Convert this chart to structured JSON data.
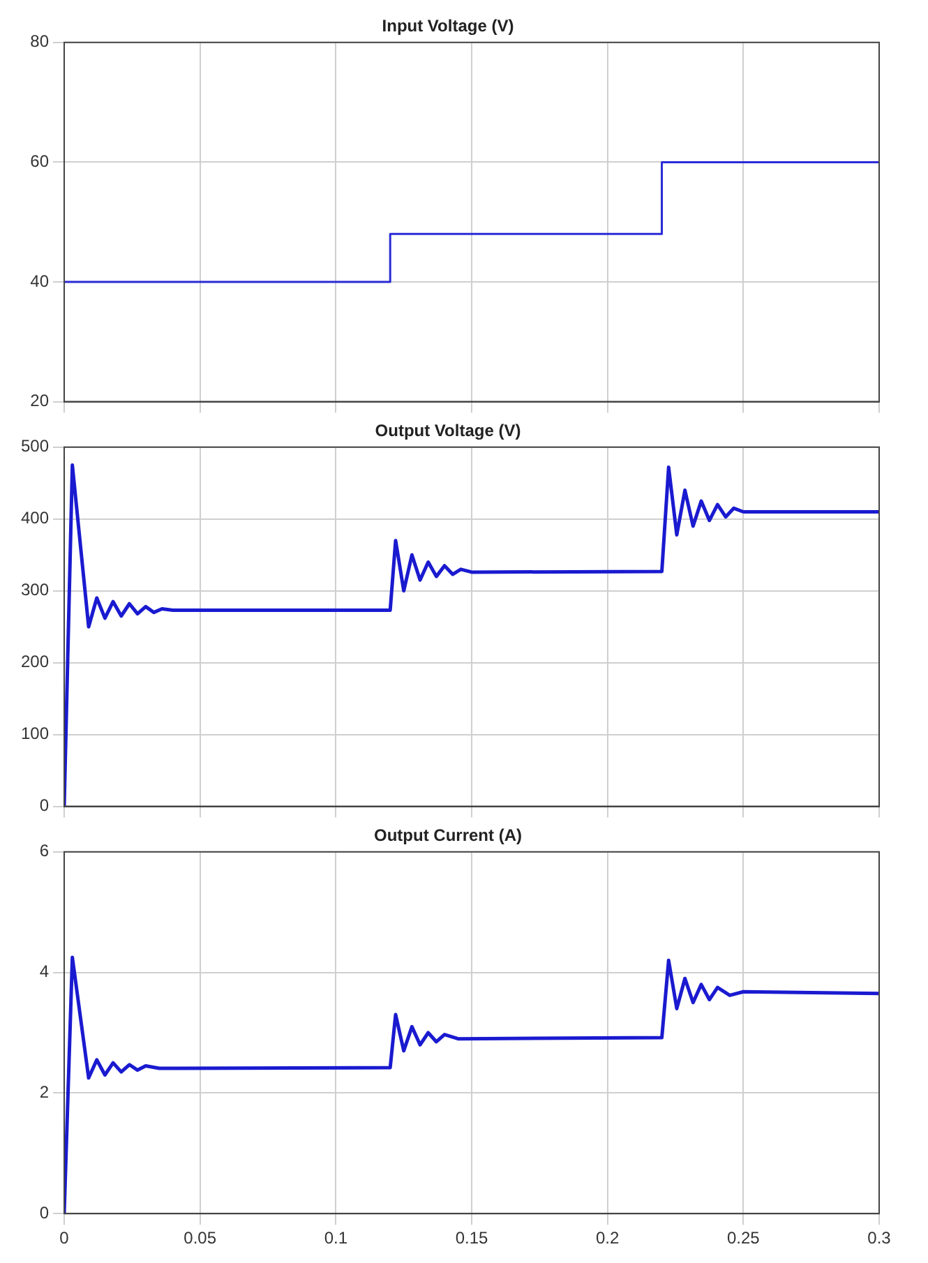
{
  "chart_data": [
    {
      "type": "step",
      "title": "Input Voltage (V)",
      "x": [
        0,
        0.12,
        0.22,
        0.3
      ],
      "series": [
        {
          "color": "#2b2bd6",
          "values": [
            40,
            48,
            60,
            60
          ]
        }
      ],
      "xlim": [
        0,
        0.3
      ],
      "xticks": [
        0,
        0.05,
        0.1,
        0.15,
        0.2,
        0.25,
        0.3
      ],
      "ylim": [
        20,
        80
      ],
      "yticks": [
        20,
        40,
        60,
        80
      ],
      "grid": true,
      "legend": false,
      "tick_labels": "y"
    },
    {
      "type": "line",
      "title": "Output Voltage (V)",
      "x": [
        0,
        0.003,
        0.009,
        0.012,
        0.015,
        0.018,
        0.021,
        0.024,
        0.027,
        0.03,
        0.033,
        0.036,
        0.04,
        0.12,
        0.122,
        0.125,
        0.128,
        0.131,
        0.134,
        0.137,
        0.14,
        0.143,
        0.146,
        0.15,
        0.22,
        0.2225,
        0.2255,
        0.2285,
        0.2315,
        0.2345,
        0.2375,
        0.2405,
        0.2435,
        0.2465,
        0.25,
        0.3
      ],
      "series": [
        {
          "color": "#1a1ad0",
          "values": [
            0,
            475,
            250,
            290,
            262,
            285,
            265,
            282,
            268,
            278,
            270,
            275,
            273,
            273,
            370,
            300,
            350,
            315,
            340,
            320,
            335,
            323,
            330,
            326,
            327,
            472,
            378,
            440,
            390,
            425,
            398,
            420,
            403,
            415,
            410,
            410
          ]
        }
      ],
      "xlim": [
        0,
        0.3
      ],
      "xticks": [
        0,
        0.05,
        0.1,
        0.15,
        0.2,
        0.25,
        0.3
      ],
      "ylim": [
        0,
        500
      ],
      "yticks": [
        0,
        100,
        200,
        300,
        400,
        500
      ],
      "grid": true,
      "legend": false,
      "tick_labels": "y"
    },
    {
      "type": "line",
      "title": "Output Current (A)",
      "x": [
        0,
        0.003,
        0.009,
        0.012,
        0.015,
        0.018,
        0.021,
        0.024,
        0.027,
        0.03,
        0.035,
        0.12,
        0.122,
        0.125,
        0.128,
        0.131,
        0.134,
        0.137,
        0.14,
        0.145,
        0.22,
        0.2225,
        0.2255,
        0.2285,
        0.2315,
        0.2345,
        0.2375,
        0.2405,
        0.245,
        0.25,
        0.3
      ],
      "series": [
        {
          "color": "#1a1ad0",
          "values": [
            0,
            4.25,
            2.25,
            2.55,
            2.3,
            2.5,
            2.35,
            2.47,
            2.38,
            2.45,
            2.41,
            2.42,
            3.3,
            2.7,
            3.1,
            2.8,
            3.0,
            2.85,
            2.97,
            2.9,
            2.92,
            4.2,
            3.4,
            3.9,
            3.5,
            3.8,
            3.55,
            3.75,
            3.62,
            3.68,
            3.65
          ]
        }
      ],
      "xlim": [
        0,
        0.3
      ],
      "xticks": [
        0,
        0.05,
        0.1,
        0.15,
        0.2,
        0.25,
        0.3
      ],
      "ylim": [
        0,
        6
      ],
      "yticks": [
        0,
        2,
        4,
        6
      ],
      "grid": true,
      "legend": false
    }
  ]
}
